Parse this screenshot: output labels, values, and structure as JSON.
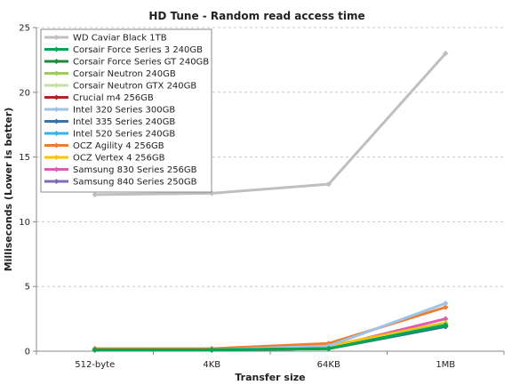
{
  "chart_data": {
    "type": "line",
    "title": "HD Tune - Random read access time",
    "xlabel": "Transfer size",
    "ylabel": "Milliseconds (Lower is better)",
    "categories": [
      "512-byte",
      "4KB",
      "64KB",
      "1MB"
    ],
    "ylim": [
      0,
      25
    ],
    "yticks": [
      0,
      5,
      10,
      15,
      20,
      25
    ],
    "grid": "horizontal",
    "legend_position": "top-left",
    "series": [
      {
        "name": "WD Caviar Black 1TB",
        "color": "#BFBFBF",
        "values": [
          12.1,
          12.2,
          12.9,
          23.0
        ]
      },
      {
        "name": "Corsair Force Series 3 240GB",
        "color": "#00A651",
        "values": [
          0.1,
          0.1,
          0.2,
          2.0
        ]
      },
      {
        "name": "Corsair Force Series GT 240GB",
        "color": "#1D8A3A",
        "values": [
          0.1,
          0.1,
          0.2,
          2.0
        ]
      },
      {
        "name": "Corsair Neutron 240GB",
        "color": "#9ACD5A",
        "values": [
          0.1,
          0.1,
          0.2,
          2.1
        ]
      },
      {
        "name": "Corsair Neutron GTX 240GB",
        "color": "#C5E0A5",
        "values": [
          0.1,
          0.1,
          0.2,
          2.1
        ]
      },
      {
        "name": "Crucial m4 256GB",
        "color": "#B22222",
        "values": [
          0.1,
          0.1,
          0.2,
          2.0
        ]
      },
      {
        "name": "Intel 320 Series 300GB",
        "color": "#9DC3E6",
        "values": [
          0.1,
          0.1,
          0.4,
          3.7
        ]
      },
      {
        "name": "Intel 335 Series 240GB",
        "color": "#2E75B6",
        "values": [
          0.1,
          0.1,
          0.2,
          1.9
        ]
      },
      {
        "name": "Intel 520 Series 240GB",
        "color": "#33B5E5",
        "values": [
          0.1,
          0.1,
          0.2,
          2.0
        ]
      },
      {
        "name": "OCZ Agility 4 256GB",
        "color": "#ED7D31",
        "values": [
          0.2,
          0.2,
          0.6,
          3.4
        ]
      },
      {
        "name": "OCZ Vertex 4 256GB",
        "color": "#FFC000",
        "values": [
          0.1,
          0.1,
          0.4,
          2.2
        ]
      },
      {
        "name": "Samsung 830 Series 256GB",
        "color": "#E05AB4",
        "values": [
          0.1,
          0.1,
          0.3,
          2.5
        ]
      },
      {
        "name": "Samsung 840 Series 250GB",
        "color": "#7E6BB5",
        "values": [
          0.1,
          0.1,
          0.2,
          1.9
        ]
      }
    ]
  }
}
